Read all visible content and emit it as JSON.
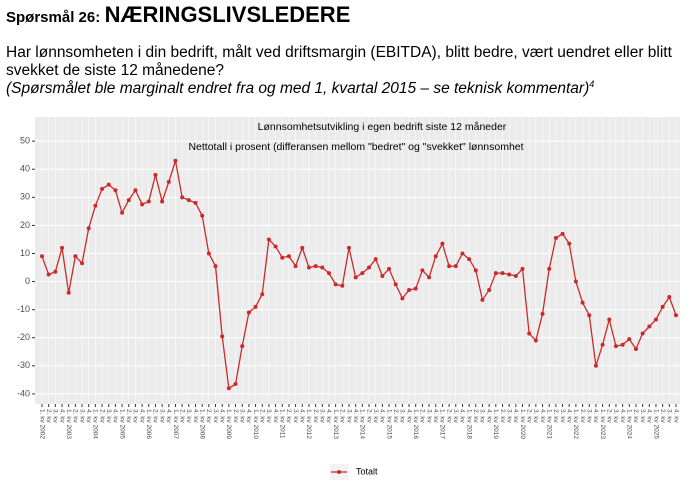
{
  "header": {
    "label": "Spørsmål 26:",
    "heading": "NÆRINGSLIVSLEDERE",
    "question_lines": [
      "Har lønnsomheten i din bedrift, målt ved driftsmargin (EBITDA), blitt bedre, vært uendret eller blitt",
      "svekket de siste 12 månedene?"
    ],
    "note": "(Spørsmålet ble marginalt endret fra og med 1, kvartal 2015 – se teknisk kommentar)",
    "note_sup": "4"
  },
  "chart_data": {
    "type": "line",
    "title": "Lønnsomhetsutvikling i egen bedrift siste 12 måneder",
    "subtitle": "Nettotall i prosent (differansen mellom \"bedret\" og \"svekket\" lønnsomhet",
    "categories": [
      "1. kv 2002",
      "2. kv",
      "3. kv",
      "4. kv",
      "1. kv 2003",
      "2. kv",
      "3. kv",
      "4. kv",
      "1. kv 2004",
      "2. kv",
      "3. kv",
      "4. kv",
      "1. kv 2005",
      "2. kv",
      "3. kv",
      "4. kv",
      "1. kv 2006",
      "2. kv",
      "3. kv",
      "4. kv",
      "1. kv 2007",
      "2. kv",
      "3. kv",
      "4. kv",
      "1. kv 2008",
      "2. kv",
      "3. kv",
      "4. kv",
      "1. kv 2009",
      "2. kv",
      "3. kv",
      "4. kv",
      "1. kv 2010",
      "2. kv",
      "3. kv",
      "4. kv",
      "1. kv 2011",
      "2. kv",
      "3. kv",
      "4. kv",
      "1. kv 2012",
      "2. kv",
      "3. kv",
      "4. kv",
      "1. kv 2013",
      "2. kv",
      "3. kv",
      "4. kv",
      "1. kv 2014",
      "2. kv",
      "3. kv",
      "4. kv",
      "1. kv 2015",
      "2. kv",
      "3. kv",
      "4. kv",
      "1. kv 2016",
      "2. kv",
      "3. kv",
      "4. kv",
      "1. kv 2017",
      "2. kv",
      "3. kv",
      "4. kv",
      "1. kv 2018",
      "2. kv",
      "3. kv",
      "4. kv",
      "1. kv 2019",
      "2. kv",
      "3. kv",
      "4. kv",
      "1. kv 2020",
      "2. kv",
      "3. kv",
      "4. kv",
      "1. kv 2021",
      "2. kv",
      "3. kv",
      "4. kv",
      "1. kv 2022",
      "2. kv",
      "3. kv",
      "4. kv",
      "1. kv 2023",
      "2. kv",
      "3. kv",
      "4. kv",
      "1. kv 2024",
      "2. kv",
      "3. kv",
      "4. kv",
      "1. kv 2025",
      "2. kv",
      "3. kv",
      "4. kv"
    ],
    "series": [
      {
        "name": "Totalt",
        "color": "#cc2a2a",
        "values": [
          9,
          2.5,
          3.5,
          12,
          -4,
          9,
          6.5,
          19,
          27,
          33,
          34.5,
          32.5,
          24.5,
          29,
          32.5,
          27.5,
          28.5,
          38,
          28.5,
          35.5,
          43,
          30,
          29,
          28,
          23.5,
          10,
          5.5,
          -19.5,
          -38,
          -36.5,
          -23,
          -11,
          -9,
          -4.5,
          15,
          12.5,
          8.5,
          9,
          5.5,
          12,
          5,
          5.5,
          5,
          3,
          -1,
          -1.5,
          12,
          1.5,
          3,
          5,
          8,
          2,
          4.5,
          -1,
          -6,
          -3,
          -2.5,
          4,
          1.5,
          9,
          13.5,
          5.5,
          5.5,
          10,
          8,
          4,
          -6.5,
          -3,
          3,
          3,
          2.5,
          2,
          4.5,
          -18.5,
          -21,
          -11.5,
          4.5,
          15.5,
          17,
          13.5,
          0,
          -7.5,
          -12,
          -30,
          -22.5,
          -13.5,
          -23,
          -22.5,
          -20.5,
          -24,
          -18.5,
          -16,
          -13.5,
          -9,
          -5.5,
          -12
        ]
      }
    ],
    "ylim": [
      -43.6,
      58.6
    ],
    "yticks": [
      -40,
      -30,
      -20,
      -10,
      0,
      10,
      20,
      30,
      40,
      50
    ],
    "grid": true,
    "legend": "bottom"
  }
}
